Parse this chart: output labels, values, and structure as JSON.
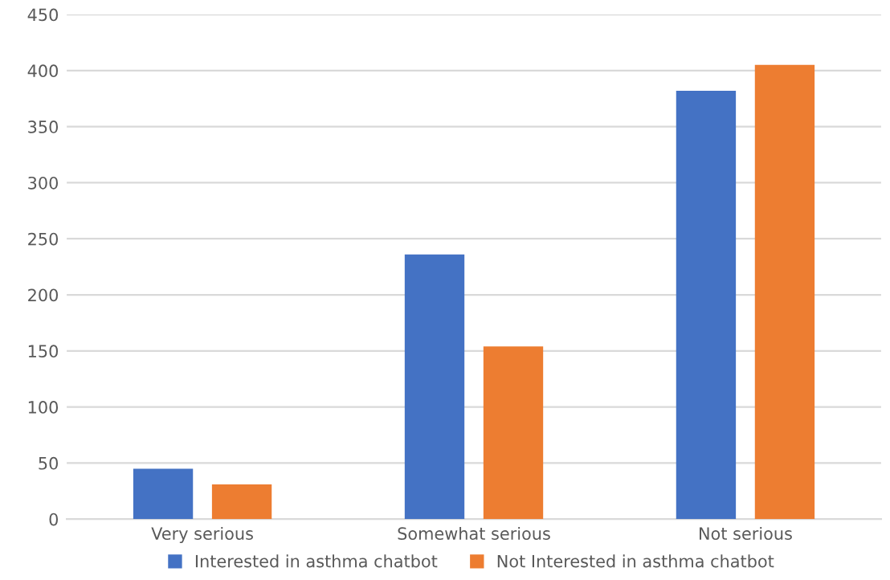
{
  "chart_data": {
    "type": "bar",
    "categories": [
      "Very serious",
      "Somewhat serious",
      "Not serious"
    ],
    "series": [
      {
        "name": "Interested in asthma chatbot",
        "color": "#4472c4",
        "values": [
          45,
          236,
          382
        ]
      },
      {
        "name": "Not Interested in asthma chatbot",
        "color": "#ed7d31",
        "values": [
          31,
          154,
          405
        ]
      }
    ],
    "ylim": [
      0,
      450
    ],
    "yticks": [
      0,
      50,
      100,
      150,
      200,
      250,
      300,
      350,
      400,
      450
    ],
    "grid": "y",
    "legend": "bottom"
  }
}
